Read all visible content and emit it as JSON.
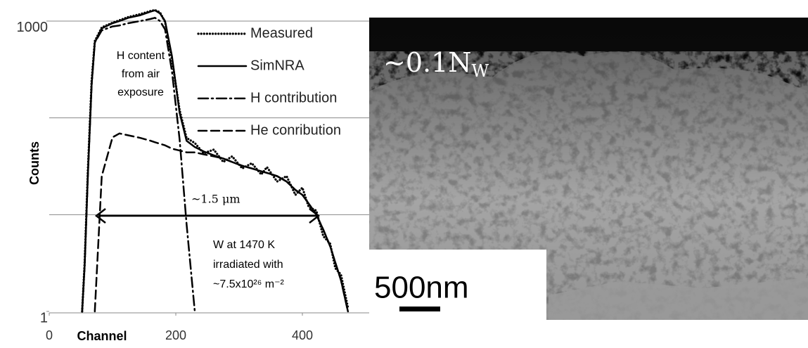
{
  "chart_data": {
    "type": "line",
    "y_axis_label": "Counts",
    "x_axis_label": "Channel",
    "log_y": true,
    "grid": true,
    "xlim": [
      0,
      500
    ],
    "xticks": [
      0,
      200,
      400
    ],
    "ylim": [
      1,
      1500
    ],
    "yticks": [
      1,
      1000
    ],
    "ygrid": [
      10,
      100,
      1000
    ],
    "x": [
      52,
      56,
      61,
      67,
      72,
      83,
      100,
      111,
      125,
      144,
      160,
      167,
      175,
      183,
      194,
      206,
      217,
      230,
      244,
      260,
      275,
      289,
      305,
      320,
      335,
      344,
      360,
      375,
      389,
      400,
      410,
      422,
      433,
      444,
      452,
      461,
      472
    ],
    "series": [
      {
        "name": "Measured",
        "color": "#000000",
        "style": "dotted",
        "values": [
          1,
          3.2,
          28,
          240,
          620,
          860,
          960,
          1020,
          1100,
          1180,
          1270,
          1300,
          1230,
          980,
          400,
          120,
          62,
          55,
          43,
          47,
          35,
          40,
          30,
          34,
          26,
          31,
          22,
          25,
          16,
          19,
          12,
          11,
          6,
          5,
          2.8,
          2.4,
          1.1
        ]
      },
      {
        "name": "SimNRA",
        "color": "#000000",
        "style": "solid",
        "values": [
          1,
          3,
          25,
          220,
          600,
          840,
          950,
          1000,
          1080,
          1150,
          1250,
          1290,
          1200,
          1000,
          430,
          113,
          58,
          50,
          45,
          41,
          38,
          35,
          32,
          30,
          28,
          27,
          25,
          22,
          18,
          16,
          13,
          10,
          7,
          4.7,
          3.2,
          2.1,
          1
        ]
      },
      {
        "name": "H contribution",
        "color": "#000000",
        "style": "dashdot",
        "values": [
          1,
          3,
          25,
          220,
          600,
          800,
          880,
          900,
          950,
          1000,
          1050,
          1080,
          1000,
          820,
          300,
          60,
          8,
          1,
          null,
          null,
          null,
          null,
          null,
          null,
          null,
          null,
          null,
          null,
          null,
          null,
          null,
          null,
          null,
          null,
          null,
          null,
          null
        ]
      },
      {
        "name": "He conribution",
        "color": "#000000",
        "style": "dashed",
        "values": [
          null,
          null,
          null,
          null,
          1,
          25,
          63,
          69,
          66,
          62,
          58,
          56,
          54,
          52,
          48,
          46,
          44,
          44,
          42,
          40,
          38,
          35,
          32,
          30,
          28,
          27,
          25,
          22,
          18,
          16,
          13,
          10,
          7,
          4.7,
          3.2,
          2.1,
          1
        ]
      }
    ],
    "annotations": {
      "h_content": [
        "H content",
        "from air",
        "exposure"
      ],
      "thickness": "~1.5 μm",
      "sample": [
        "W at 1470 K",
        "irradiated with",
        "~7.5x10²⁶ m⁻²"
      ]
    }
  },
  "image": {
    "label_main": "~0.1N",
    "label_sub": "W",
    "scale_bar": "500nm"
  }
}
